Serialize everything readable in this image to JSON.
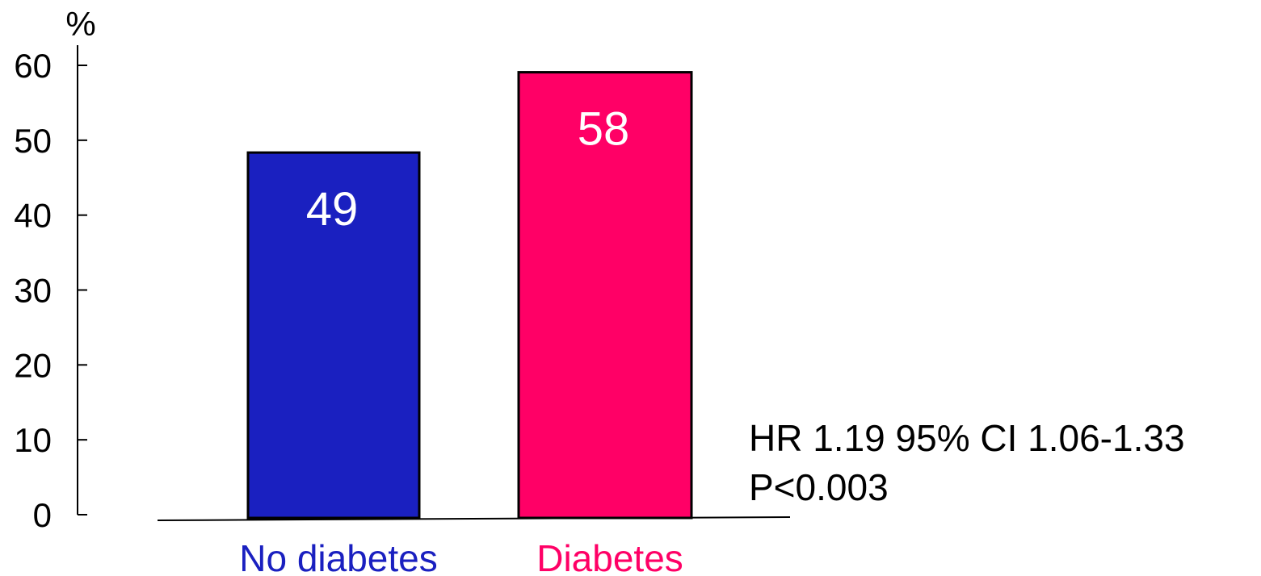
{
  "chart_data": {
    "type": "bar",
    "categories": [
      "No diabetes",
      "Diabetes"
    ],
    "values": [
      49,
      58
    ],
    "value_labels": [
      "49",
      "58"
    ],
    "colors": [
      "#1a20c0",
      "#ff0066"
    ],
    "title": "",
    "xlabel": "",
    "ylabel": "%",
    "ylim": [
      0,
      60
    ],
    "yticks": [
      0,
      10,
      20,
      30,
      40,
      50,
      60
    ],
    "grid": false,
    "annotations": [
      "HR 1.19 95% CI 1.06-1.33",
      "P<0.003"
    ]
  }
}
